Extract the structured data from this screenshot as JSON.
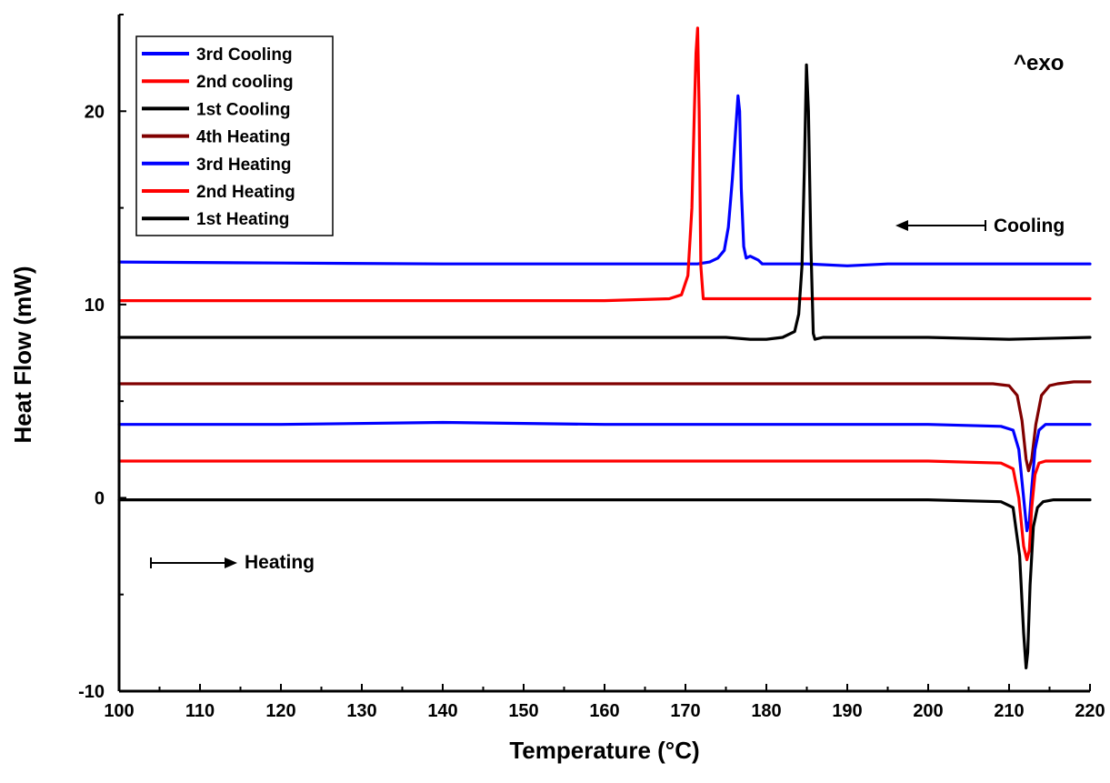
{
  "chart_data": {
    "type": "line",
    "title": "",
    "xlabel": "Temperature (°C)",
    "ylabel": "Heat Flow (mW)",
    "xlim": [
      100,
      220
    ],
    "ylim": [
      -10,
      25
    ],
    "xticks": [
      100,
      110,
      120,
      130,
      140,
      150,
      160,
      170,
      180,
      190,
      200,
      210,
      220
    ],
    "yticks": [
      -10,
      0,
      10,
      20
    ],
    "grid": false,
    "legend_position": "top-left",
    "series": [
      {
        "name": "3rd Cooling",
        "color": "#0000ff",
        "x": [
          100,
          120,
          140,
          160,
          168,
          170,
          171.5,
          173,
          174,
          174.8,
          175.3,
          175.8,
          176.2,
          176.5,
          176.7,
          176.9,
          177.2,
          177.5,
          178,
          178.5,
          179,
          179.5,
          180,
          185,
          190,
          195,
          200,
          210,
          220
        ],
        "y": [
          12.2,
          12.15,
          12.1,
          12.1,
          12.1,
          12.1,
          12.1,
          12.2,
          12.4,
          12.8,
          14.0,
          16.5,
          19.0,
          20.8,
          20.0,
          16.0,
          13.0,
          12.4,
          12.5,
          12.4,
          12.3,
          12.1,
          12.1,
          12.1,
          12.0,
          12.1,
          12.1,
          12.1,
          12.1
        ]
      },
      {
        "name": "2nd cooling",
        "color": "#ff0000",
        "x": [
          100,
          120,
          140,
          160,
          168,
          169.5,
          170.3,
          170.8,
          171.1,
          171.3,
          171.5,
          171.7,
          171.9,
          172.2,
          175,
          180,
          190,
          200,
          210,
          220
        ],
        "y": [
          10.2,
          10.2,
          10.2,
          10.2,
          10.3,
          10.5,
          11.5,
          15.0,
          20.0,
          23.0,
          24.3,
          20.0,
          12.0,
          10.3,
          10.3,
          10.3,
          10.3,
          10.3,
          10.3,
          10.3
        ],
        "series_note": ""
      },
      {
        "name": "1st Cooling",
        "color": "#000000",
        "x": [
          100,
          120,
          140,
          160,
          175,
          178,
          180,
          182,
          183.5,
          184,
          184.4,
          184.7,
          184.95,
          185.2,
          185.5,
          185.8,
          186,
          187,
          190,
          200,
          210,
          220
        ],
        "y": [
          8.3,
          8.3,
          8.3,
          8.3,
          8.3,
          8.2,
          8.2,
          8.3,
          8.6,
          9.5,
          12.0,
          17.0,
          22.4,
          20.0,
          13.0,
          8.5,
          8.2,
          8.3,
          8.3,
          8.3,
          8.2,
          8.3
        ]
      },
      {
        "name": "4th Heating",
        "color": "#800000",
        "x": [
          100,
          120,
          140,
          160,
          180,
          200,
          208,
          210,
          211,
          211.6,
          212.1,
          212.4,
          212.8,
          213.3,
          214,
          215,
          216,
          218,
          220
        ],
        "y": [
          5.9,
          5.9,
          5.9,
          5.9,
          5.9,
          5.9,
          5.9,
          5.8,
          5.3,
          4.0,
          2.0,
          1.4,
          2.0,
          3.8,
          5.3,
          5.8,
          5.9,
          6.0,
          6.0
        ]
      },
      {
        "name": "3rd Heating",
        "color": "#0000ff",
        "x": [
          100,
          120,
          140,
          160,
          180,
          200,
          209,
          210.5,
          211.2,
          211.8,
          212.2,
          212.5,
          212.8,
          213.2,
          213.7,
          214.5,
          216,
          220
        ],
        "y": [
          3.8,
          3.8,
          3.9,
          3.8,
          3.8,
          3.8,
          3.7,
          3.5,
          2.5,
          0.0,
          -1.7,
          -1.2,
          0.5,
          2.5,
          3.5,
          3.8,
          3.8,
          3.8
        ]
      },
      {
        "name": "2nd Heating",
        "color": "#ff0000",
        "x": [
          100,
          120,
          140,
          160,
          180,
          200,
          209,
          210.5,
          211.2,
          211.8,
          212.2,
          212.5,
          212.8,
          213.2,
          213.7,
          214.5,
          216,
          220
        ],
        "y": [
          1.9,
          1.9,
          1.9,
          1.9,
          1.9,
          1.9,
          1.8,
          1.5,
          0.0,
          -2.5,
          -3.2,
          -2.7,
          -0.5,
          1.2,
          1.8,
          1.9,
          1.9,
          1.9
        ]
      },
      {
        "name": "1st Heating",
        "color": "#000000",
        "x": [
          100,
          120,
          140,
          160,
          180,
          200,
          209,
          210.5,
          211.3,
          211.8,
          212.1,
          212.3,
          212.6,
          213,
          213.5,
          214.2,
          215.5,
          220
        ],
        "y": [
          -0.1,
          -0.1,
          -0.1,
          -0.1,
          -0.1,
          -0.1,
          -0.2,
          -0.5,
          -3.0,
          -7.0,
          -8.8,
          -8.0,
          -4.5,
          -1.5,
          -0.5,
          -0.2,
          -0.1,
          -0.1
        ]
      }
    ],
    "annotations": [
      {
        "text": "^exo",
        "x": 213,
        "y": 21.5
      },
      {
        "text": "Cooling",
        "x": 206,
        "y": 14.0
      },
      {
        "text": "Heating",
        "x": 116,
        "y": -3.3
      }
    ]
  }
}
